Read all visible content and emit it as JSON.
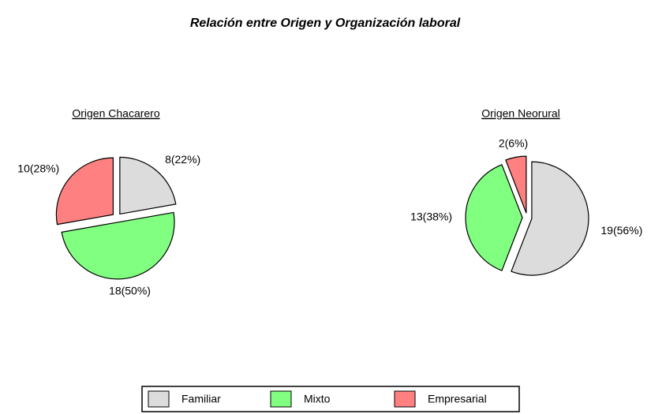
{
  "title": "Relación entre Origen y Organización laboral",
  "legend": {
    "labels": [
      "Familiar",
      "Mixto",
      "Empresarial"
    ],
    "colors": [
      "#dcdcdc",
      "#80ff80",
      "#ff8080"
    ]
  },
  "chart_data": [
    {
      "type": "pie",
      "title": "Origen Chacarero",
      "values": [
        8,
        18,
        10
      ],
      "value_labels": [
        "8(22%)",
        "18(50%)",
        "10(28%)"
      ]
    },
    {
      "type": "pie",
      "title": "Origen Neorural",
      "values": [
        19,
        13,
        2
      ],
      "value_labels": [
        "19(56%)",
        "13(38%)",
        "2(6%)"
      ]
    }
  ]
}
